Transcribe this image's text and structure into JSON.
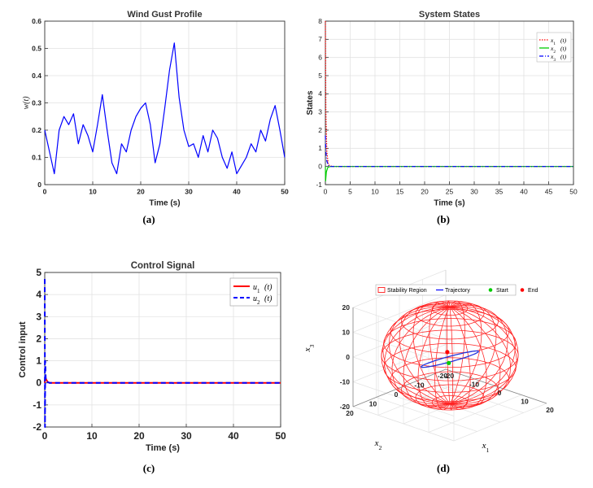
{
  "chart_data": [
    {
      "id": "a",
      "type": "line",
      "title": "Wind Gust Profile",
      "xlabel": "Time (s)",
      "ylabel": "w(t)",
      "xlim": [
        0,
        50
      ],
      "ylim": [
        0,
        0.6
      ],
      "xticks": [
        "0",
        "10",
        "20",
        "30",
        "40",
        "50"
      ],
      "yticks": [
        "0",
        "0.1",
        "0.2",
        "0.3",
        "0.4",
        "0.5",
        "0.6"
      ],
      "grid": true,
      "series": [
        {
          "color": "#0000ff",
          "x": [
            0,
            1,
            2,
            3,
            4,
            5,
            6,
            7,
            8,
            9,
            10,
            11,
            12,
            13,
            14,
            15,
            16,
            17,
            18,
            19,
            20,
            21,
            22,
            23,
            24,
            25,
            26,
            27,
            28,
            29,
            30,
            31,
            32,
            33,
            34,
            35,
            36,
            37,
            38,
            39,
            40,
            41,
            42,
            43,
            44,
            45,
            46,
            47,
            48,
            49,
            50
          ],
          "y": [
            0.2,
            0.12,
            0.04,
            0.2,
            0.25,
            0.22,
            0.26,
            0.15,
            0.22,
            0.18,
            0.12,
            0.22,
            0.33,
            0.2,
            0.08,
            0.04,
            0.15,
            0.12,
            0.2,
            0.25,
            0.28,
            0.3,
            0.22,
            0.08,
            0.15,
            0.28,
            0.42,
            0.52,
            0.32,
            0.2,
            0.14,
            0.15,
            0.1,
            0.18,
            0.12,
            0.2,
            0.17,
            0.1,
            0.06,
            0.12,
            0.04,
            0.07,
            0.1,
            0.15,
            0.12,
            0.2,
            0.16,
            0.24,
            0.29,
            0.2,
            0.1
          ]
        }
      ],
      "caption": "(a)"
    },
    {
      "id": "b",
      "type": "line",
      "title": "System States",
      "xlabel": "Time (s)",
      "ylabel": "States",
      "xlim": [
        0,
        50
      ],
      "ylim": [
        -1,
        8
      ],
      "xticks": [
        "0",
        "5",
        "10",
        "15",
        "20",
        "25",
        "30",
        "35",
        "40",
        "45",
        "50"
      ],
      "yticks": [
        "-1",
        "0",
        "1",
        "2",
        "3",
        "4",
        "5",
        "6",
        "7",
        "8"
      ],
      "grid": true,
      "legend": "top-right",
      "series": [
        {
          "name": "x1(t)",
          "color": "#ff0000",
          "style": "dotted",
          "x": [
            0,
            0.1,
            0.3,
            0.6,
            1,
            2,
            5,
            50
          ],
          "y": [
            8,
            3,
            0.8,
            0.1,
            0.02,
            0,
            0,
            0
          ]
        },
        {
          "name": "x2(t)",
          "color": "#00cc00",
          "style": "solid",
          "x": [
            0,
            0.05,
            0.2,
            0.5,
            1,
            2,
            5,
            50
          ],
          "y": [
            0,
            -0.8,
            -0.3,
            -0.05,
            0,
            0,
            0,
            0
          ]
        },
        {
          "name": "x3(t)",
          "color": "#0000ff",
          "style": "dashdot",
          "x": [
            0,
            0.1,
            0.3,
            0.6,
            1,
            2,
            5,
            50
          ],
          "y": [
            1.7,
            0.8,
            0.3,
            0.05,
            0,
            0,
            0,
            0
          ]
        }
      ],
      "caption": "(b)"
    },
    {
      "id": "c",
      "type": "line",
      "title": "Control Signal",
      "xlabel": "Time (s)",
      "ylabel": "Control input",
      "xlim": [
        0,
        50
      ],
      "ylim": [
        -2,
        5
      ],
      "xticks": [
        "0",
        "10",
        "20",
        "30",
        "40",
        "50"
      ],
      "yticks": [
        "-2",
        "-1",
        "0",
        "1",
        "2",
        "3",
        "4",
        "5"
      ],
      "grid": true,
      "legend": "top-right",
      "series": [
        {
          "name": "u1(t)",
          "color": "#ff0000",
          "style": "solid",
          "x": [
            0,
            0.1,
            0.3,
            0.6,
            1,
            2,
            27,
            28,
            50
          ],
          "y": [
            0,
            0.3,
            0.15,
            0.05,
            0,
            0,
            0,
            0,
            0
          ]
        },
        {
          "name": "u2(t)",
          "color": "#0000ff",
          "style": "dashed",
          "x": [
            0,
            0.05,
            0.1,
            0.2,
            0.4,
            1,
            27,
            27.5,
            28,
            50
          ],
          "y": [
            4.7,
            -2,
            1,
            0.2,
            0.05,
            0,
            0,
            -0.03,
            0,
            0
          ]
        }
      ],
      "caption": "(c)"
    },
    {
      "id": "d",
      "type": "scatter",
      "title": "",
      "xlabel": "x1",
      "ylabel": "x2",
      "zlabel": "x3",
      "xlim": [
        -20,
        20
      ],
      "ylim": [
        -20,
        20
      ],
      "zlim": [
        -20,
        20
      ],
      "xticks": [
        "-20",
        "-10",
        "0",
        "10",
        "20"
      ],
      "yticks": [
        "-20",
        "-10",
        "0",
        "10",
        "20"
      ],
      "zticks": [
        "-20",
        "-10",
        "0",
        "10",
        "20"
      ],
      "legend": "top",
      "legend_items": [
        {
          "name": "Stability Region",
          "color": "#ff0000",
          "marker": "box"
        },
        {
          "name": "Trajectory",
          "color": "#0000ff",
          "marker": "line"
        },
        {
          "name": "Start",
          "color": "#00cc00",
          "marker": "dot"
        },
        {
          "name": "End",
          "color": "#ff0000",
          "marker": "dot"
        }
      ],
      "caption": "(d)"
    }
  ]
}
